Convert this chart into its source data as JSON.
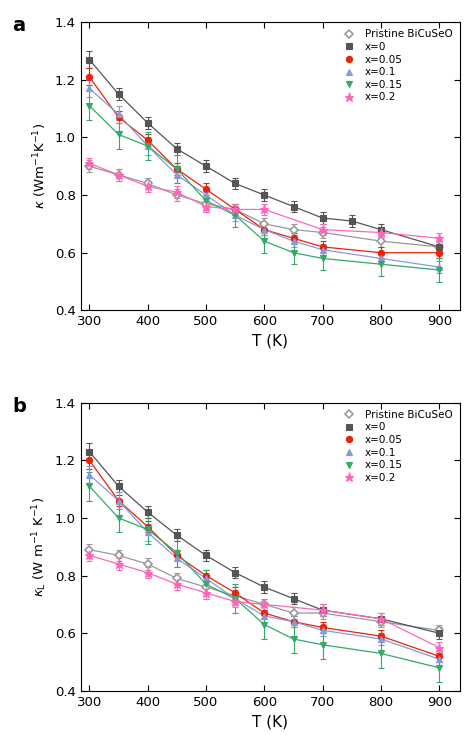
{
  "T": [
    300,
    350,
    400,
    450,
    500,
    550,
    600,
    650,
    700,
    750,
    800,
    850,
    900
  ],
  "panel_a": {
    "pristine": [
      0.9,
      0.87,
      0.84,
      0.8,
      0.77,
      0.75,
      0.7,
      0.68,
      0.67,
      null,
      0.64,
      null,
      0.62
    ],
    "pristine_err": [
      0.02,
      0.02,
      0.02,
      0.02,
      0.02,
      0.02,
      0.02,
      0.02,
      0.02,
      null,
      0.02,
      null,
      0.02
    ],
    "x0": [
      1.27,
      1.15,
      1.05,
      0.96,
      0.9,
      0.84,
      0.8,
      0.76,
      0.72,
      0.71,
      0.68,
      null,
      0.62
    ],
    "x0_err": [
      0.03,
      0.02,
      0.02,
      0.02,
      0.02,
      0.02,
      0.02,
      0.02,
      0.02,
      0.02,
      0.02,
      null,
      0.02
    ],
    "x005": [
      1.21,
      1.07,
      0.99,
      0.89,
      0.82,
      0.75,
      0.68,
      0.65,
      0.62,
      null,
      0.6,
      null,
      0.6
    ],
    "x005_err": [
      0.03,
      0.02,
      0.02,
      0.02,
      0.02,
      0.02,
      0.02,
      0.02,
      0.02,
      null,
      0.02,
      null,
      0.02
    ],
    "x01": [
      1.17,
      1.08,
      0.97,
      0.87,
      0.8,
      0.73,
      0.68,
      0.64,
      0.61,
      null,
      0.58,
      null,
      0.55
    ],
    "x01_err": [
      0.03,
      0.03,
      0.03,
      0.03,
      0.02,
      0.02,
      0.02,
      0.02,
      0.02,
      null,
      0.02,
      null,
      0.02
    ],
    "x015": [
      1.11,
      1.01,
      0.97,
      0.89,
      0.78,
      0.73,
      0.64,
      0.6,
      0.58,
      null,
      0.56,
      null,
      0.54
    ],
    "x015_err": [
      0.05,
      0.05,
      0.05,
      0.05,
      0.04,
      0.04,
      0.04,
      0.04,
      0.04,
      null,
      0.04,
      null,
      0.04
    ],
    "x02": [
      0.91,
      0.87,
      0.83,
      0.81,
      0.76,
      0.75,
      0.75,
      null,
      0.68,
      null,
      0.67,
      null,
      0.65
    ],
    "x02_err": [
      0.02,
      0.02,
      0.02,
      0.02,
      0.02,
      0.02,
      0.02,
      null,
      0.02,
      null,
      0.02,
      null,
      0.02
    ]
  },
  "panel_b": {
    "pristine": [
      0.89,
      0.87,
      0.84,
      0.79,
      0.76,
      0.73,
      0.7,
      0.67,
      0.67,
      null,
      0.64,
      null,
      0.61
    ],
    "pristine_err": [
      0.02,
      0.02,
      0.02,
      0.02,
      0.02,
      0.02,
      0.02,
      0.02,
      0.02,
      null,
      0.02,
      null,
      0.02
    ],
    "x0": [
      1.23,
      1.11,
      1.02,
      0.94,
      0.87,
      0.81,
      0.76,
      0.72,
      0.68,
      null,
      0.65,
      null,
      0.6
    ],
    "x0_err": [
      0.03,
      0.02,
      0.02,
      0.02,
      0.02,
      0.02,
      0.02,
      0.02,
      0.02,
      null,
      0.02,
      null,
      0.02
    ],
    "x005": [
      1.2,
      1.06,
      0.97,
      0.87,
      0.8,
      0.74,
      0.67,
      0.64,
      0.62,
      null,
      0.59,
      null,
      0.52
    ],
    "x005_err": [
      0.03,
      0.02,
      0.02,
      0.02,
      0.02,
      0.02,
      0.02,
      0.02,
      0.02,
      null,
      0.02,
      null,
      0.02
    ],
    "x01": [
      1.15,
      1.06,
      0.95,
      0.86,
      0.79,
      0.72,
      0.66,
      0.64,
      0.61,
      null,
      0.58,
      null,
      0.51
    ],
    "x01_err": [
      0.03,
      0.03,
      0.03,
      0.03,
      0.02,
      0.02,
      0.02,
      0.02,
      0.02,
      null,
      0.02,
      null,
      0.02
    ],
    "x015": [
      1.11,
      1.0,
      0.96,
      0.88,
      0.77,
      0.72,
      0.63,
      0.58,
      0.56,
      null,
      0.53,
      null,
      0.48
    ],
    "x015_err": [
      0.05,
      0.05,
      0.05,
      0.05,
      0.05,
      0.05,
      0.05,
      0.05,
      0.05,
      null,
      0.05,
      null,
      0.05
    ],
    "x02": [
      0.87,
      0.84,
      0.81,
      0.77,
      0.74,
      0.71,
      0.7,
      null,
      0.68,
      null,
      0.65,
      null,
      0.55
    ],
    "x02_err": [
      0.02,
      0.02,
      0.02,
      0.02,
      0.02,
      0.02,
      0.02,
      null,
      0.02,
      null,
      0.02,
      null,
      0.02
    ]
  },
  "colors": {
    "pristine": "#999999",
    "x0": "#555555",
    "x005": "#e8230a",
    "x01": "#8899dd",
    "x015": "#33aa66",
    "x02": "#ff66bb"
  },
  "T_axis": [
    300,
    400,
    500,
    600,
    700,
    800,
    900
  ],
  "ylim": [
    0.4,
    1.4
  ],
  "xlabel": "T (K)",
  "ylabel_a": "κ (Wm⁻¹K⁻¹)",
  "ylabel_b": "κ_L (W m⁻¹ K⁻¹)"
}
